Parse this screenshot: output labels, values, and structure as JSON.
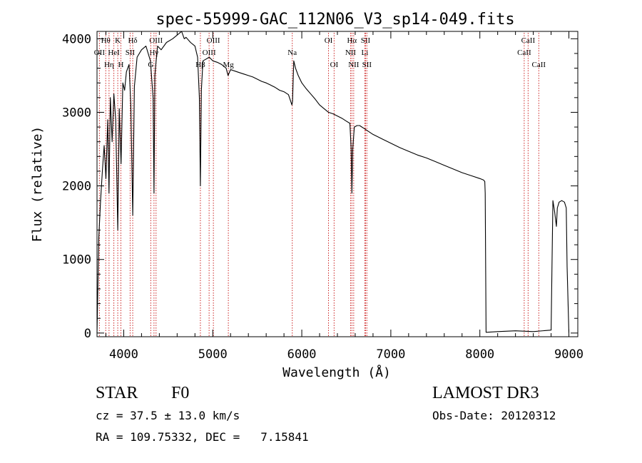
{
  "chart_data": {
    "type": "line",
    "title": "spec-55999-GAC_112N06_V3_sp14-049.fits",
    "xlabel": "Wavelength (Å)",
    "ylabel": "Flux (relative)",
    "xlim": [
      3700,
      9100
    ],
    "ylim": [
      -50,
      4100
    ],
    "x_ticks": [
      4000,
      5000,
      6000,
      7000,
      8000,
      9000
    ],
    "x_tick_labels": [
      "4000",
      "5000",
      "6000",
      "7000",
      "8000",
      "9000"
    ],
    "y_ticks": [
      0,
      1000,
      2000,
      3000,
      4000
    ],
    "y_tick_labels": [
      "0",
      "1000",
      "2000",
      "3000",
      "4000"
    ],
    "series": [
      {
        "name": "flux",
        "x": [
          3700,
          3720,
          3740,
          3760,
          3780,
          3800,
          3820,
          3835,
          3850,
          3870,
          3889,
          3910,
          3933,
          3950,
          3970,
          3990,
          4010,
          4030,
          4060,
          4080,
          4101,
          4120,
          4150,
          4200,
          4250,
          4300,
          4330,
          4340,
          4350,
          4360,
          4380,
          4420,
          4480,
          4550,
          4600,
          4650,
          4680,
          4700,
          4750,
          4800,
          4830,
          4850,
          4861,
          4872,
          4890,
          4920,
          4960,
          5000,
          5050,
          5100,
          5150,
          5172,
          5200,
          5250,
          5300,
          5350,
          5400,
          5450,
          5500,
          5550,
          5600,
          5650,
          5700,
          5750,
          5800,
          5850,
          5889,
          5896,
          5910,
          5930,
          5960,
          6000,
          6050,
          6100,
          6150,
          6200,
          6250,
          6300,
          6350,
          6400,
          6450,
          6500,
          6540,
          6555,
          6563,
          6572,
          6590,
          6620,
          6650,
          6700,
          6750,
          6800,
          6850,
          6900,
          7000,
          7100,
          7200,
          7300,
          7400,
          7500,
          7600,
          7700,
          7800,
          7900,
          8000,
          8040,
          8055,
          8060,
          8070,
          8200,
          8400,
          8600,
          8800,
          8810,
          8820,
          8840,
          8860,
          8870,
          8890,
          8920,
          8950,
          8970,
          8980,
          9000
        ],
        "y": [
          0,
          1300,
          1800,
          2200,
          2550,
          2100,
          2900,
          1900,
          3200,
          2600,
          3250,
          2900,
          1400,
          3050,
          2300,
          3400,
          3300,
          3550,
          3650,
          3100,
          1600,
          3350,
          3750,
          3850,
          3900,
          3700,
          3200,
          1900,
          3500,
          3650,
          3900,
          3850,
          3950,
          4000,
          4050,
          4100,
          4000,
          4020,
          3950,
          3900,
          3750,
          3200,
          2000,
          3300,
          3700,
          3720,
          3750,
          3700,
          3680,
          3650,
          3600,
          3500,
          3580,
          3560,
          3540,
          3520,
          3500,
          3480,
          3450,
          3420,
          3400,
          3370,
          3340,
          3300,
          3280,
          3240,
          3100,
          3150,
          3700,
          3600,
          3500,
          3400,
          3320,
          3250,
          3180,
          3100,
          3050,
          3000,
          2980,
          2950,
          2920,
          2880,
          2850,
          2500,
          1900,
          2500,
          2800,
          2820,
          2820,
          2780,
          2740,
          2700,
          2670,
          2640,
          2580,
          2520,
          2470,
          2420,
          2380,
          2330,
          2280,
          2230,
          2180,
          2140,
          2100,
          2080,
          2060,
          1900,
          10,
          20,
          30,
          20,
          40,
          900,
          1800,
          1650,
          1450,
          1700,
          1780,
          1800,
          1780,
          1700,
          900,
          0
        ]
      }
    ],
    "line_markers": [
      {
        "name": "OII",
        "wavelength": 3727,
        "row": 1
      },
      {
        "name": "Hθ",
        "wavelength": 3798,
        "row": 0
      },
      {
        "name": "Hη",
        "wavelength": 3835,
        "row": 2
      },
      {
        "name": "K",
        "wavelength": 3933,
        "row": 0
      },
      {
        "name": "HeI",
        "wavelength": 3889,
        "row": 1
      },
      {
        "name": "H",
        "wavelength": 3968,
        "row": 2
      },
      {
        "name": "Hδ",
        "wavelength": 4101,
        "row": 0
      },
      {
        "name": "SII",
        "wavelength": 4072,
        "row": 1
      },
      {
        "name": "Hγ",
        "wavelength": 4340,
        "row": 1
      },
      {
        "name": "OIII",
        "wavelength": 4363,
        "row": 0
      },
      {
        "name": "G",
        "wavelength": 4304,
        "row": 2
      },
      {
        "name": "Hβ",
        "wavelength": 4861,
        "row": 2
      },
      {
        "name": "OIII",
        "wavelength": 5007,
        "row": 0
      },
      {
        "name": "OIII",
        "wavelength": 4959,
        "row": 1
      },
      {
        "name": "Mg",
        "wavelength": 5175,
        "row": 2
      },
      {
        "name": "Na",
        "wavelength": 5893,
        "row": 1
      },
      {
        "name": "OI",
        "wavelength": 6300,
        "row": 0
      },
      {
        "name": "OI",
        "wavelength": 6363,
        "row": 2
      },
      {
        "name": "Hα",
        "wavelength": 6563,
        "row": 0
      },
      {
        "name": "NII",
        "wavelength": 6548,
        "row": 1
      },
      {
        "name": "NII",
        "wavelength": 6583,
        "row": 2
      },
      {
        "name": "SII",
        "wavelength": 6716,
        "row": 0
      },
      {
        "name": "Li",
        "wavelength": 6708,
        "row": 1
      },
      {
        "name": "SII",
        "wavelength": 6731,
        "row": 2
      },
      {
        "name": "CaII",
        "wavelength": 8498,
        "row": 1
      },
      {
        "name": "CaII",
        "wavelength": 8542,
        "row": 0
      },
      {
        "name": "CaII",
        "wavelength": 8662,
        "row": 2
      }
    ]
  },
  "info": {
    "class_label": "STAR",
    "subclass": "F0",
    "survey": "LAMOST DR3",
    "redshift_line": "cz = 37.5 ± 13.0 km/s",
    "obs_date_line": "Obs-Date: 20120312",
    "coords_line": "RA = 109.75332, DEC =   7.15841"
  },
  "colors": {
    "axis": "#000000",
    "flux_line": "#000000",
    "marker_line": "#cc2222",
    "background": "#ffffff"
  }
}
